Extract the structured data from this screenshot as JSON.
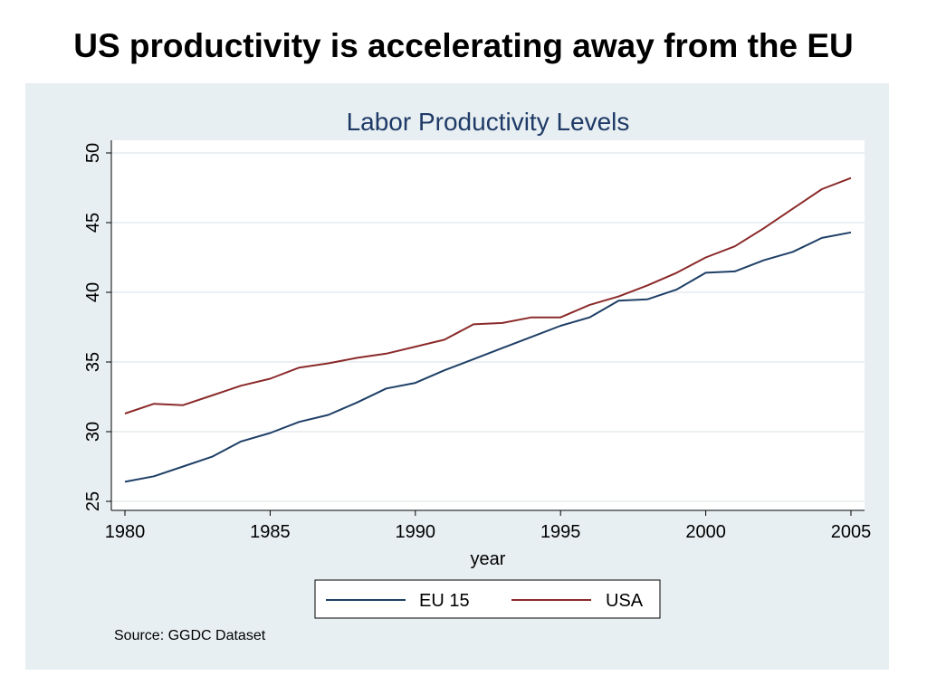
{
  "slide": {
    "title": "US productivity is accelerating away from the EU",
    "source": "Source: GGDC Dataset"
  },
  "colors": {
    "background_panel": "#e8eff2",
    "plot_area": "#ffffff",
    "title_color": "#1e3a66",
    "eu15": "#1e3f66",
    "usa": "#8b2a2a"
  },
  "chart_data": {
    "type": "line",
    "title": "Labor Productivity Levels",
    "xlabel": "year",
    "ylabel": "",
    "xlim": [
      1980,
      2005
    ],
    "ylim": [
      25,
      50
    ],
    "xticks": [
      1980,
      1985,
      1990,
      1995,
      2000,
      2005
    ],
    "yticks": [
      25,
      30,
      35,
      40,
      45,
      50
    ],
    "grid": "horizontal",
    "legend_position": "bottom",
    "x": [
      1980,
      1981,
      1982,
      1983,
      1984,
      1985,
      1986,
      1987,
      1988,
      1989,
      1990,
      1991,
      1992,
      1993,
      1994,
      1995,
      1996,
      1997,
      1998,
      1999,
      2000,
      2001,
      2002,
      2003,
      2004,
      2005
    ],
    "series": [
      {
        "name": "EU 15",
        "color": "#1e3f66",
        "values": [
          26.4,
          26.8,
          27.5,
          28.2,
          29.3,
          29.9,
          30.7,
          31.2,
          32.1,
          33.1,
          33.5,
          34.4,
          35.2,
          36.0,
          36.8,
          37.6,
          38.2,
          39.4,
          39.5,
          40.2,
          41.4,
          41.5,
          42.3,
          42.9,
          43.9,
          44.3
        ]
      },
      {
        "name": "USA",
        "color": "#8b2a2a",
        "values": [
          31.3,
          32.0,
          31.9,
          32.6,
          33.3,
          33.8,
          34.6,
          34.9,
          35.3,
          35.6,
          36.1,
          36.6,
          37.7,
          37.8,
          38.2,
          38.2,
          39.1,
          39.7,
          40.5,
          41.4,
          42.5,
          43.3,
          44.6,
          46.0,
          47.4,
          48.2
        ]
      }
    ]
  }
}
